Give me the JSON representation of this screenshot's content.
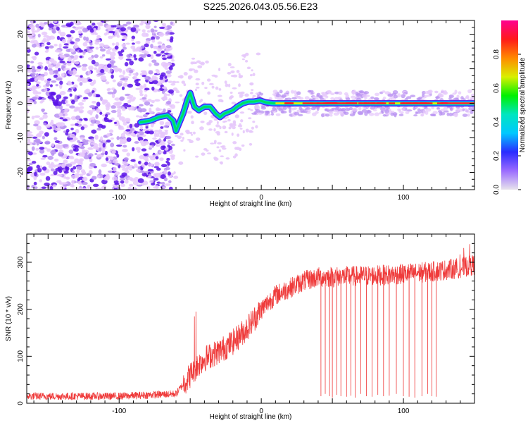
{
  "title": "S225.2026.043.05.56.E23",
  "colors": {
    "snr_line": "#ef3b3b",
    "scatter_light": "#e6c8fb",
    "scatter_mid": "#b892f2",
    "scatter_dark": "#5a12e8",
    "colorbar_stops": [
      "#e7e3ec",
      "#9b6cff",
      "#2a2bff",
      "#00c8ff",
      "#00e6c0",
      "#00f000",
      "#d9f000",
      "#ff8a00",
      "#ff1a1a",
      "#ff0090"
    ]
  },
  "chart_data": [
    {
      "type": "heatmap",
      "xlabel": "Height of straight line (km)",
      "ylabel": "Frequency (Hz)",
      "xlim": [
        -165,
        150
      ],
      "ylim": [
        -25,
        24
      ],
      "x_ticks": [
        -100,
        0,
        100
      ],
      "y_ticks": [
        -20,
        -10,
        0,
        10,
        20
      ],
      "colorbar": {
        "label": "Normalized spectral amplitude",
        "range": [
          0,
          1
        ],
        "ticks": [
          "0.0",
          "0.2",
          "0.4",
          "0.6",
          "0.8"
        ],
        "tick_values": [
          0,
          0.2,
          0.4,
          0.6,
          0.8
        ]
      },
      "ridge": {
        "x": [
          -85,
          -78,
          -72,
          -66,
          -62,
          -60,
          -58,
          -55,
          -52,
          -50,
          -47,
          -44,
          -40,
          -36,
          -32,
          -29,
          -26,
          -23,
          -20,
          -17,
          -13,
          -9,
          -5,
          -1,
          3,
          8,
          12,
          20,
          40,
          60,
          80,
          100,
          120,
          150
        ],
        "y": [
          -5.5,
          -5,
          -4,
          -3.5,
          -5,
          -8,
          -6,
          -3,
          1,
          3,
          -1,
          -2,
          -1,
          -1,
          -3,
          -4,
          -3,
          -2.5,
          -2,
          -1,
          0,
          0.5,
          0.5,
          0.8,
          0.3,
          0,
          0,
          0,
          0,
          0,
          0,
          0,
          0,
          0
        ]
      }
    },
    {
      "type": "line",
      "xlabel": "Height of straight line (km)",
      "ylabel": "SNR (10 * v/v)",
      "xlim": [
        -165,
        150
      ],
      "ylim": [
        0,
        360
      ],
      "x_ticks": [
        -100,
        0,
        100
      ],
      "y_ticks": [
        0,
        100,
        200,
        300
      ],
      "trend": {
        "x": [
          -165,
          -100,
          -60,
          -50,
          -45,
          -40,
          -30,
          -20,
          -10,
          0,
          10,
          20,
          30,
          40,
          60,
          80,
          100,
          120,
          140,
          150
        ],
        "y": [
          15,
          15,
          20,
          60,
          80,
          95,
          110,
          130,
          160,
          200,
          230,
          245,
          260,
          268,
          270,
          272,
          275,
          280,
          288,
          295
        ]
      },
      "spikes": {
        "x": [
          -47,
          -46
        ],
        "y": [
          185,
          195
        ]
      },
      "dropouts": {
        "x": [
          42,
          45,
          48,
          50,
          53,
          56,
          60,
          63,
          66,
          70,
          74,
          78,
          82,
          86,
          90,
          95,
          100,
          104,
          108,
          113,
          117,
          120,
          123
        ],
        "y": [
          15,
          20,
          15,
          12,
          18,
          15,
          14,
          16,
          12,
          20,
          15,
          14,
          18,
          15,
          16,
          20,
          15,
          14,
          12,
          15,
          20,
          15,
          14
        ]
      }
    }
  ]
}
